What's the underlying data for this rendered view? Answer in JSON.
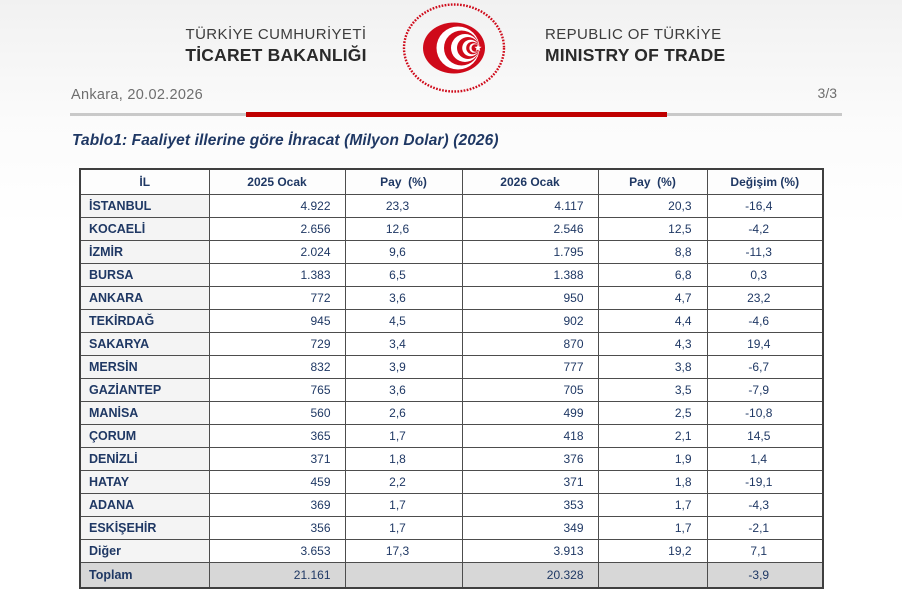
{
  "header": {
    "org_left": {
      "line1": "TÜRKİYE CUMHURİYETİ",
      "line2": "TİCARET BAKANLIĞI"
    },
    "org_right": {
      "line1": "REPUBLIC OF TÜRKİYE",
      "line2": "MINISTRY OF TRADE"
    },
    "logo": "ministry-of-trade-emblem",
    "dateline": "Ankara, 20.02.2026",
    "page_number": "3/3"
  },
  "title": "Tablo1: Faaliyet illerine göre İhracat (Milyon Dolar) (2026)",
  "table": {
    "columns": [
      "İL",
      "2025 Ocak",
      "Pay  (%)",
      "2026 Ocak",
      "Pay  (%)",
      "Değişim (%)"
    ],
    "rows": [
      [
        "İSTANBUL",
        "4.922",
        "23,3",
        "4.117",
        "20,3",
        "-16,4"
      ],
      [
        "KOCAELİ",
        "2.656",
        "12,6",
        "2.546",
        "12,5",
        "-4,2"
      ],
      [
        "İZMİR",
        "2.024",
        "9,6",
        "1.795",
        "8,8",
        "-11,3"
      ],
      [
        "BURSA",
        "1.383",
        "6,5",
        "1.388",
        "6,8",
        "0,3"
      ],
      [
        "ANKARA",
        "772",
        "3,6",
        "950",
        "4,7",
        "23,2"
      ],
      [
        "TEKİRDAĞ",
        "945",
        "4,5",
        "902",
        "4,4",
        "-4,6"
      ],
      [
        "SAKARYA",
        "729",
        "3,4",
        "870",
        "4,3",
        "19,4"
      ],
      [
        "MERSİN",
        "832",
        "3,9",
        "777",
        "3,8",
        "-6,7"
      ],
      [
        "GAZİANTEP",
        "765",
        "3,6",
        "705",
        "3,5",
        "-7,9"
      ],
      [
        "MANİSA",
        "560",
        "2,6",
        "499",
        "2,5",
        "-10,8"
      ],
      [
        "ÇORUM",
        "365",
        "1,7",
        "418",
        "2,1",
        "14,5"
      ],
      [
        "DENİZLİ",
        "371",
        "1,8",
        "376",
        "1,9",
        "1,4"
      ],
      [
        "HATAY",
        "459",
        "2,2",
        "371",
        "1,8",
        "-19,1"
      ],
      [
        "ADANA",
        "369",
        "1,7",
        "353",
        "1,7",
        "-4,3"
      ],
      [
        "ESKİŞEHİR",
        "356",
        "1,7",
        "349",
        "1,7",
        "-2,1"
      ],
      [
        "Diğer",
        "3.653",
        "17,3",
        "3.913",
        "19,2",
        "7,1"
      ]
    ],
    "total_row": [
      "Toplam",
      "21.161",
      "",
      "20.328",
      "",
      "-3,9"
    ]
  },
  "colors": {
    "accent_red": "#c00000",
    "logo_red": "#cf0a1a",
    "navy": "#1f3864",
    "total_row_bg": "#d7d7d7"
  }
}
